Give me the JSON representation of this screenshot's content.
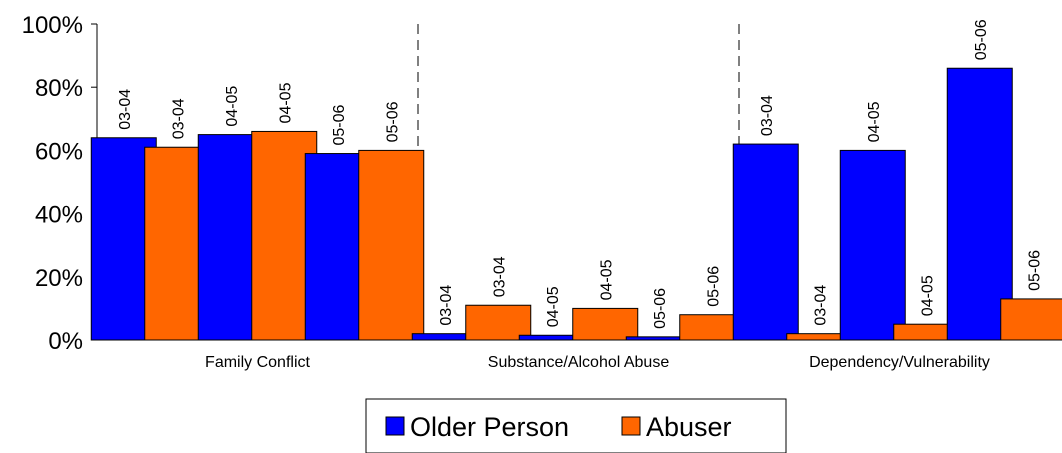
{
  "chart_data": {
    "type": "bar",
    "ylim": [
      0,
      100
    ],
    "y_ticks": [
      "0%",
      "20%",
      "40%",
      "60%",
      "80%",
      "100%"
    ],
    "categories": [
      "Family Conflict",
      "Substance/Alcohol Abuse",
      "Dependency/Vulnerability"
    ],
    "periods": [
      "03-04",
      "04-05",
      "05-06"
    ],
    "series": [
      {
        "name": "Older Person",
        "color": "#0000ff",
        "values": [
          [
            64,
            65,
            59
          ],
          [
            2,
            1.5,
            1
          ],
          [
            62,
            60,
            86
          ]
        ]
      },
      {
        "name": "Abuser",
        "color": "#ff6600",
        "values": [
          [
            61,
            66,
            60
          ],
          [
            11,
            10,
            8
          ],
          [
            2,
            5,
            13
          ]
        ]
      }
    ],
    "bar_order": "period-then-series",
    "separators": "dashed vertical lines between categories",
    "grid": false,
    "legend_position": "bottom-center"
  }
}
